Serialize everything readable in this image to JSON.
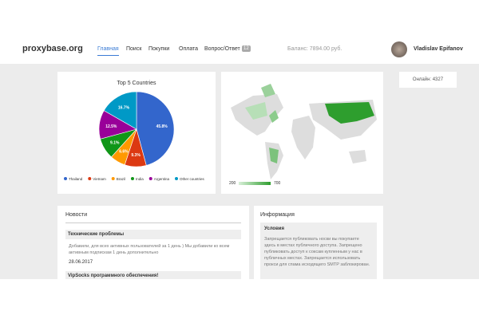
{
  "header": {
    "logo": "proxybase.org",
    "nav": [
      "Главная",
      "Поиск",
      "Покупки",
      "Оплата",
      "Вопрос/Ответ"
    ],
    "nav_badge": "12",
    "balance": "Баланс: 7894.00 руб.",
    "user": "Vladislav Epifanov"
  },
  "chart_data": {
    "type": "pie",
    "title": "Top 5 Countries",
    "categories": [
      "Thailand",
      "Vietnam",
      "Brazil",
      "India",
      "Argentina",
      "Other countries"
    ],
    "values": [
      45.8,
      9.3,
      6.6,
      9.1,
      12.5,
      16.7
    ],
    "value_labels": [
      "45.8%",
      "9.3%",
      "6.6%",
      "9.1%",
      "12.5%",
      "16.7%"
    ],
    "colors": [
      "#3366cc",
      "#dc3912",
      "#ff9900",
      "#109618",
      "#990099",
      "#0099c6"
    ]
  },
  "map": {
    "legend_min": "200",
    "legend_max": "700"
  },
  "online": "Онлайн: 4327",
  "news": {
    "title": "Новости",
    "items": [
      {
        "title": "Технические проблемы",
        "text": "Добавили, для всех активных пользователей за 1 день ) Мы добавили ко всем активным подпискам 1 день дополнительно",
        "date": "28.06.2017"
      },
      {
        "title": "VipSocks программного обеспечения!"
      }
    ]
  },
  "info": {
    "title": "Информация",
    "section": "Условия",
    "text": "Запрещается публиковать носки вы покупаете здесь в местах публичного доступа. Запрещено публиковать доступ к соксам купленным у нас в публичных местах. Запрещается использовать прокси для спама исходящего SMTP заблокирован."
  }
}
